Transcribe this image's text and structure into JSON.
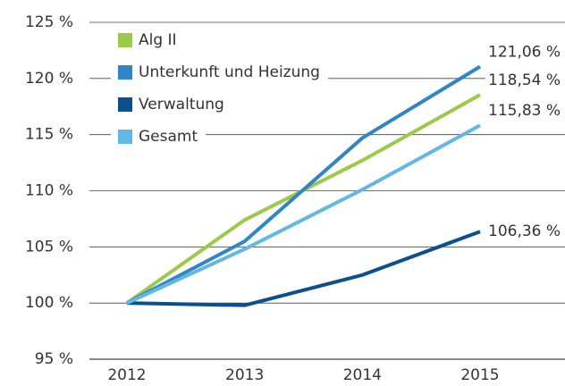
{
  "chart_data": {
    "type": "line",
    "categories": [
      "2012",
      "2013",
      "2014",
      "2015"
    ],
    "series": [
      {
        "name": "Alg II",
        "color": "#9dc94a",
        "values": [
          100,
          107.4,
          112.7,
          118.54
        ],
        "value_labels": [
          null,
          null,
          null,
          "118,54 %"
        ]
      },
      {
        "name": "Unterkunft und Heizung",
        "color": "#2f86c6",
        "values": [
          100,
          105.5,
          114.7,
          121.06
        ],
        "value_labels": [
          null,
          null,
          null,
          "121,06 %"
        ]
      },
      {
        "name": "Verwaltung",
        "color": "#0c4f8e",
        "values": [
          100,
          99.8,
          102.5,
          106.36
        ],
        "value_labels": [
          null,
          null,
          null,
          "106,36 %"
        ]
      },
      {
        "name": "Gesamt",
        "color": "#63b6e6",
        "values": [
          100,
          104.8,
          110.1,
          115.83
        ],
        "value_labels": [
          null,
          null,
          null,
          "115,83 %"
        ]
      }
    ],
    "ylim": [
      95,
      125
    ],
    "yticks": [
      {
        "value": 95,
        "label": "95 %"
      },
      {
        "value": 100,
        "label": "100 %"
      },
      {
        "value": 105,
        "label": "105 %"
      },
      {
        "value": 110,
        "label": "110 %"
      },
      {
        "value": 115,
        "label": "115 %"
      },
      {
        "value": 120,
        "label": "120 %"
      },
      {
        "value": 125,
        "label": "125 %"
      }
    ],
    "grid": true,
    "legend": "top-left"
  }
}
